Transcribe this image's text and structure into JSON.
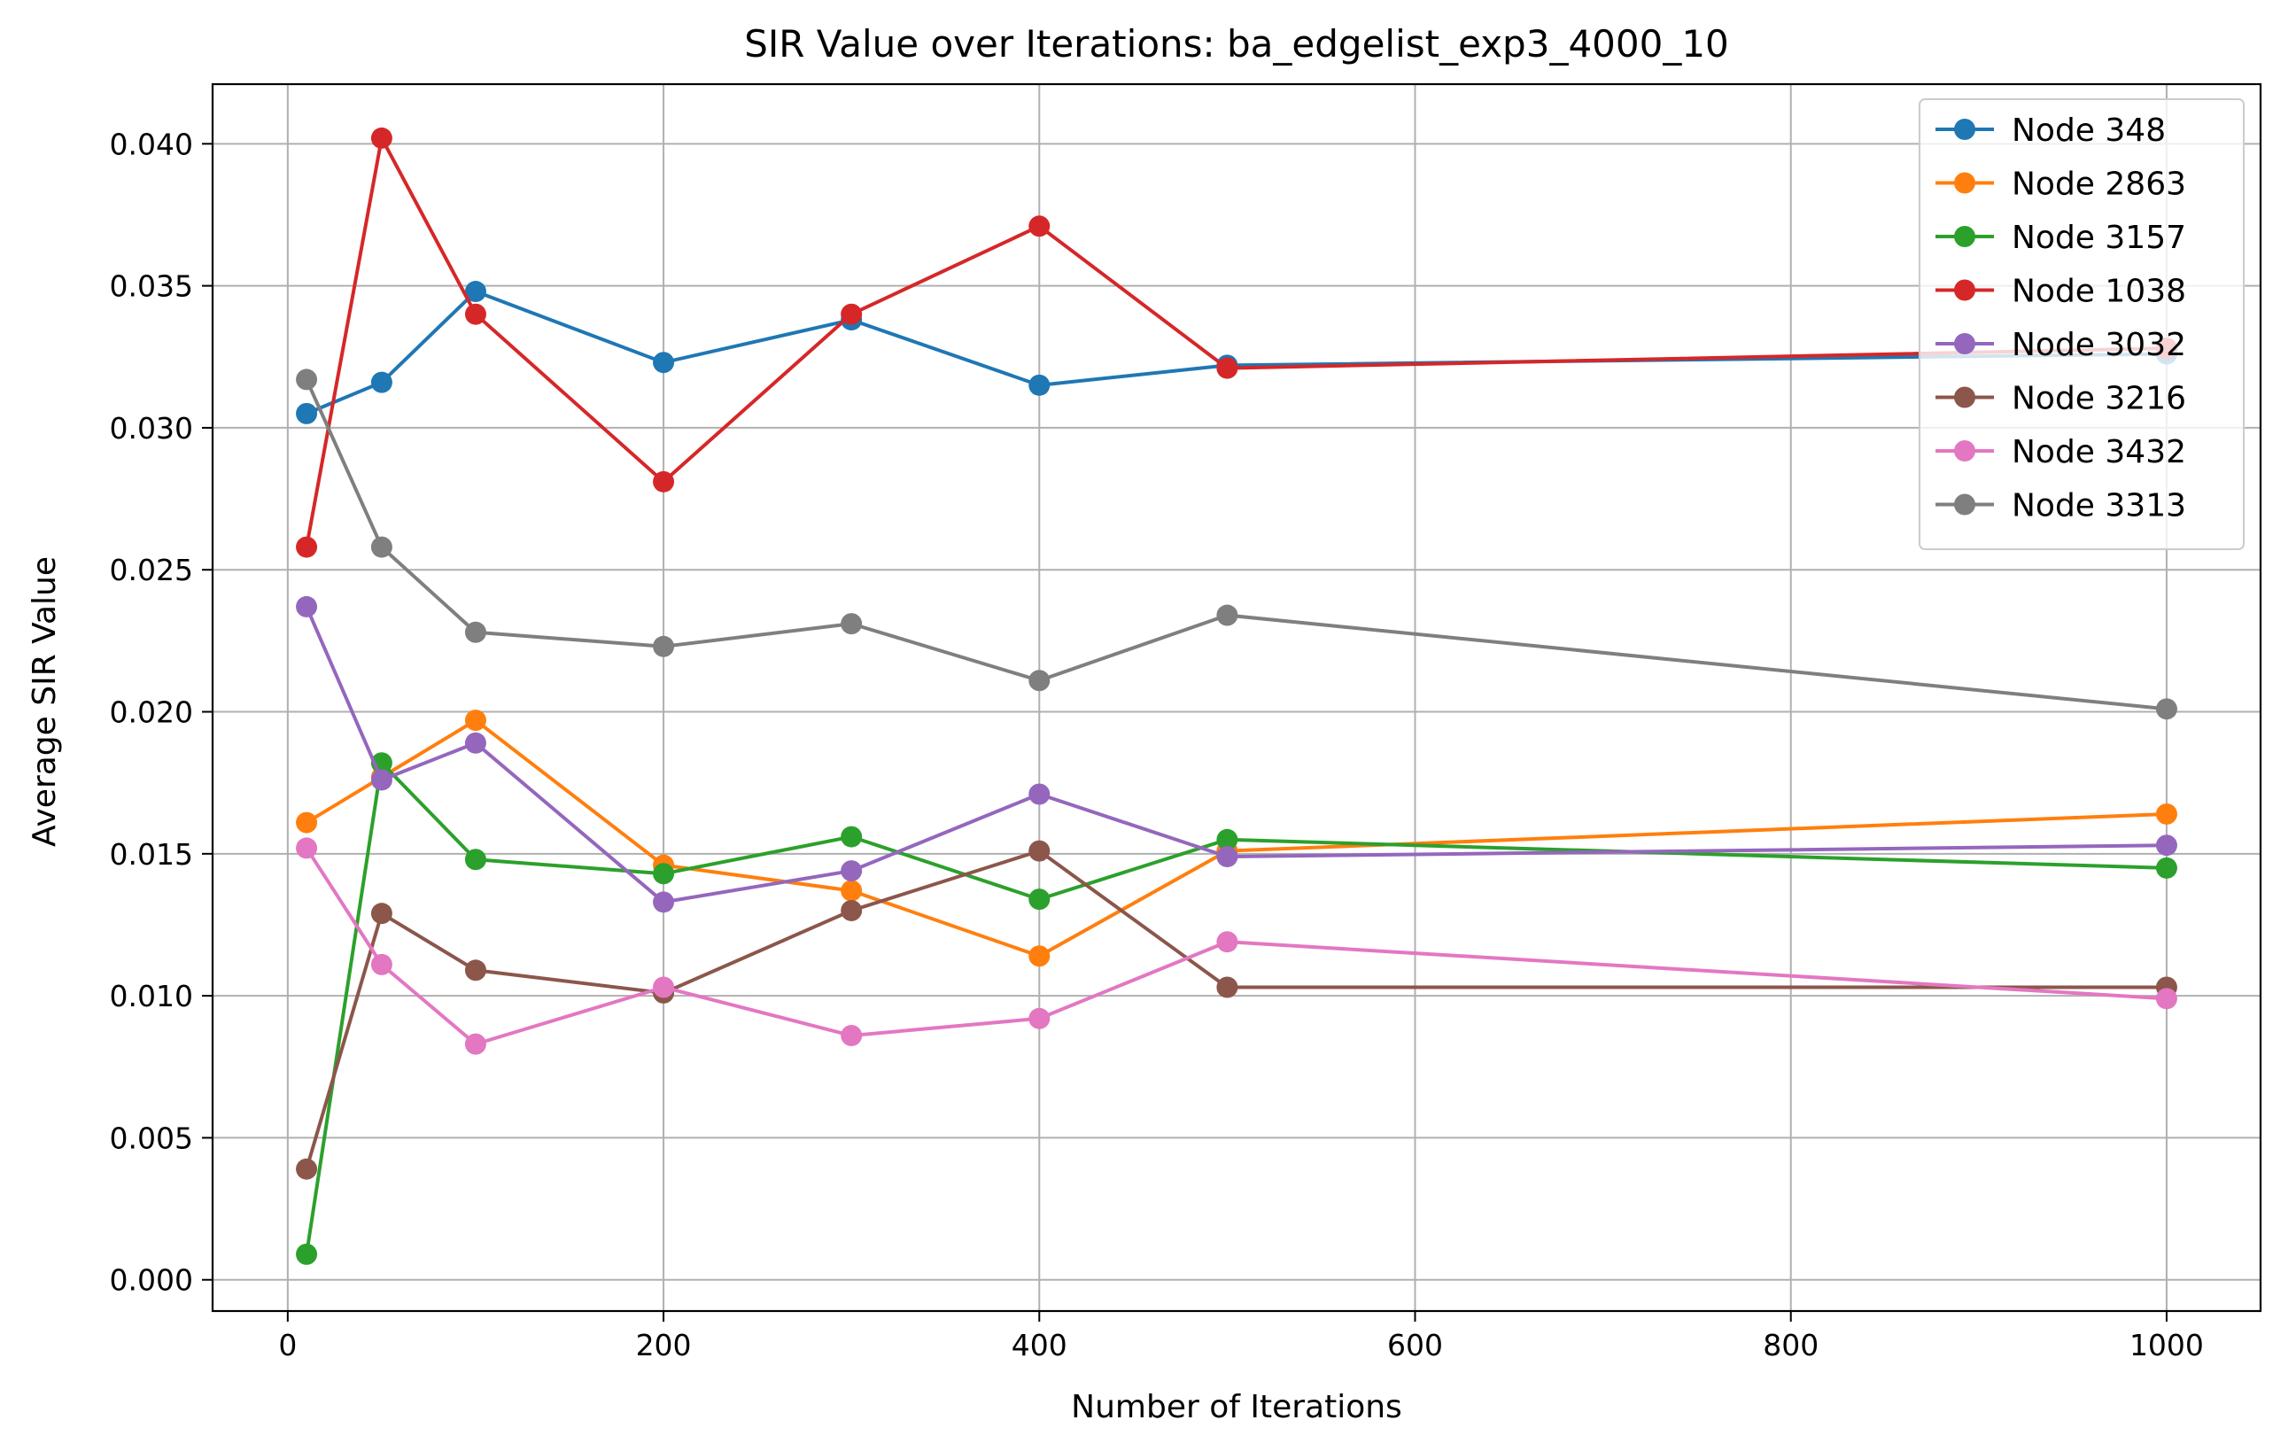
{
  "chart_data": {
    "type": "line",
    "title": "SIR Value over Iterations: ba_edgelist_exp3_4000_10",
    "xlabel": "Number of Iterations",
    "ylabel": "Average SIR Value",
    "x": [
      10,
      50,
      100,
      200,
      300,
      400,
      500,
      1000
    ],
    "xlim": [
      -40,
      1050
    ],
    "ylim": [
      -0.0011,
      0.0421
    ],
    "xticks": [
      0,
      200,
      400,
      600,
      800,
      1000
    ],
    "yticks": [
      0.0,
      0.005,
      0.01,
      0.015,
      0.02,
      0.025,
      0.03,
      0.035,
      0.04
    ],
    "ytick_labels": [
      "0.000",
      "0.005",
      "0.010",
      "0.015",
      "0.020",
      "0.025",
      "0.030",
      "0.035",
      "0.040"
    ],
    "xtick_labels": [
      "0",
      "200",
      "400",
      "600",
      "800",
      "1000"
    ],
    "grid": true,
    "legend_position": "top-right",
    "series": [
      {
        "name": "Node 348",
        "color": "#1f77b4",
        "values": [
          0.0305,
          0.0316,
          0.0348,
          0.0323,
          0.0338,
          0.0315,
          0.0322,
          0.0326
        ]
      },
      {
        "name": "Node 2863",
        "color": "#ff7f0e",
        "values": [
          0.0161,
          0.0177,
          0.0197,
          0.0146,
          0.0137,
          0.0114,
          0.0151,
          0.0164
        ]
      },
      {
        "name": "Node 3157",
        "color": "#2ca02c",
        "values": [
          0.0009,
          0.0182,
          0.0148,
          0.0143,
          0.0156,
          0.0134,
          0.0155,
          0.0145
        ]
      },
      {
        "name": "Node 1038",
        "color": "#d62728",
        "values": [
          0.0258,
          0.0402,
          0.034,
          0.0281,
          0.034,
          0.0371,
          0.0321,
          0.0328
        ]
      },
      {
        "name": "Node 3032",
        "color": "#9467bd",
        "values": [
          0.0237,
          0.0176,
          0.0189,
          0.0133,
          0.0144,
          0.0171,
          0.0149,
          0.0153
        ]
      },
      {
        "name": "Node 3216",
        "color": "#8c564b",
        "values": [
          0.0039,
          0.0129,
          0.0109,
          0.0101,
          0.013,
          0.0151,
          0.0103,
          0.0103
        ]
      },
      {
        "name": "Node 3432",
        "color": "#e377c2",
        "values": [
          0.0152,
          0.0111,
          0.0083,
          0.0103,
          0.0086,
          0.0092,
          0.0119,
          0.0099
        ]
      },
      {
        "name": "Node 3313",
        "color": "#7f7f7f",
        "values": [
          0.0317,
          0.0258,
          0.0228,
          0.0223,
          0.0231,
          0.0211,
          0.0234,
          0.0201
        ]
      }
    ]
  }
}
